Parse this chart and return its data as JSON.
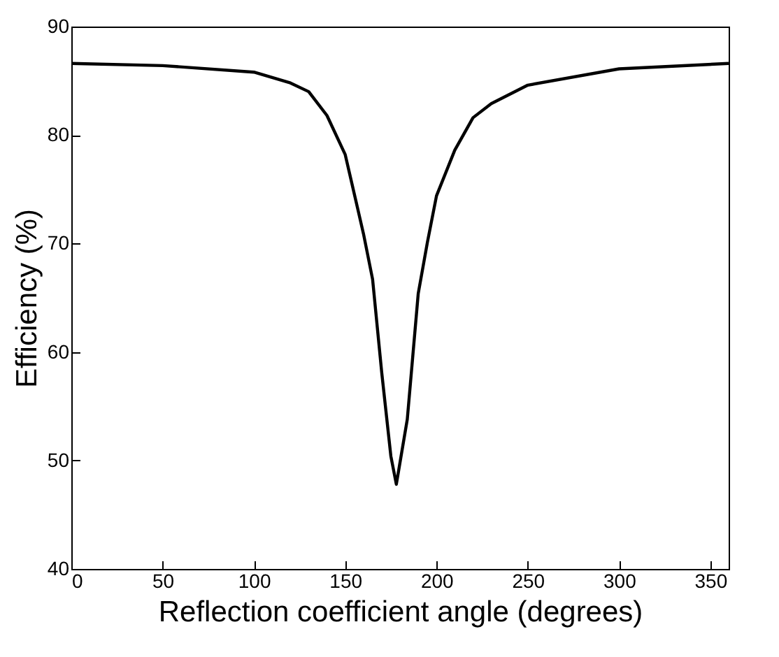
{
  "chart_data": {
    "type": "line",
    "xlabel": "Reflection coefficient angle (degrees)",
    "ylabel": "Efficiency (%)",
    "x": [
      0,
      50,
      100,
      120,
      130,
      140,
      150,
      160,
      165,
      170,
      175,
      178,
      184,
      190,
      195,
      200,
      210,
      220,
      230,
      250,
      300,
      360
    ],
    "series": [
      {
        "color": "#000000",
        "values": [
          86.6,
          86.4,
          85.8,
          84.8,
          84.0,
          81.8,
          78.2,
          70.9,
          66.7,
          58.1,
          50.4,
          47.8,
          53.8,
          65.4,
          70.1,
          74.4,
          78.6,
          81.6,
          82.9,
          84.6,
          86.1,
          86.6
        ]
      }
    ],
    "xlim": [
      0,
      360
    ],
    "xticks": [
      0,
      50,
      100,
      150,
      200,
      250,
      300,
      350
    ],
    "ylim": [
      40,
      90
    ],
    "yticks": [
      40,
      50,
      60,
      70,
      80,
      90
    ],
    "grid": false,
    "legend": false,
    "marker": "none",
    "line_style": "solid"
  }
}
